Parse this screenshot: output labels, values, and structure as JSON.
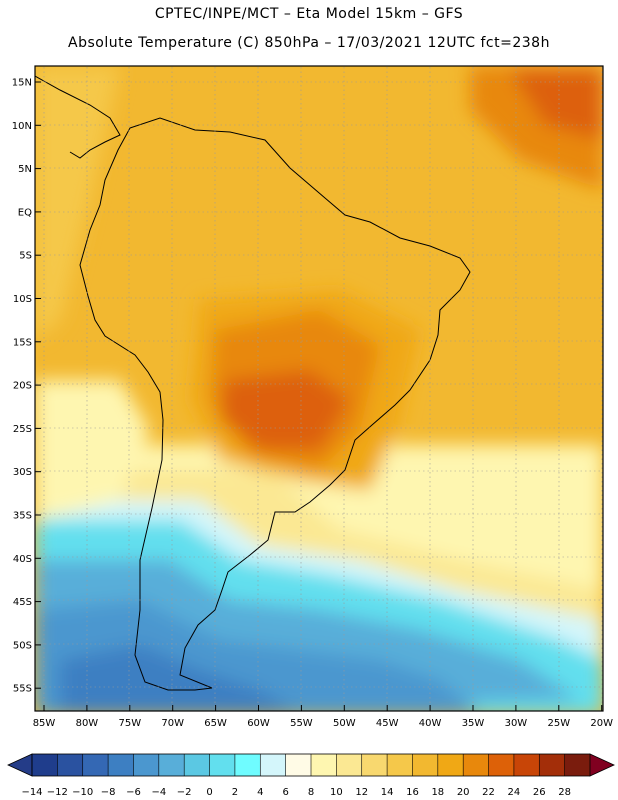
{
  "header": {
    "line1": "CPTEC/INPE/MCT –  Eta Model 15km – GFS",
    "line2": "Absolute Temperature (C) 850hPa – 17/03/2021 12UTC fct=238h"
  },
  "map": {
    "lat_labels": [
      "15N",
      "10N",
      "5N",
      "EQ",
      "5S",
      "10S",
      "15S",
      "20S",
      "25S",
      "30S",
      "35S",
      "40S",
      "45S",
      "50S",
      "55S"
    ],
    "lon_labels": [
      "85W",
      "80W",
      "75W",
      "70W",
      "65W",
      "60W",
      "55W",
      "50W",
      "45W",
      "40W",
      "35W",
      "30W",
      "25W",
      "20W"
    ]
  },
  "legend": {
    "labels": [
      "-14",
      "-12",
      "-10",
      "-8",
      "-6",
      "-4",
      "-2",
      "0",
      "2",
      "4",
      "6",
      "8",
      "10",
      "12",
      "14",
      "16",
      "18",
      "20",
      "22",
      "24",
      "26",
      "28"
    ],
    "colors": [
      "#1f3d8c",
      "#2a52a0",
      "#3468b4",
      "#3d7fc2",
      "#4b97cf",
      "#58aed9",
      "#5bc8e3",
      "#62dfee",
      "#6ffcff",
      "#d4f6fb",
      "#fffbe6",
      "#fef6b0",
      "#fbe893",
      "#f8d86f",
      "#f5c84a",
      "#f2b830",
      "#f0a815",
      "#e8880c",
      "#dd6108",
      "#c84507",
      "#a32e09",
      "#7a1c0d"
    ],
    "under_color": "#243c88",
    "over_color": "#800020"
  }
}
